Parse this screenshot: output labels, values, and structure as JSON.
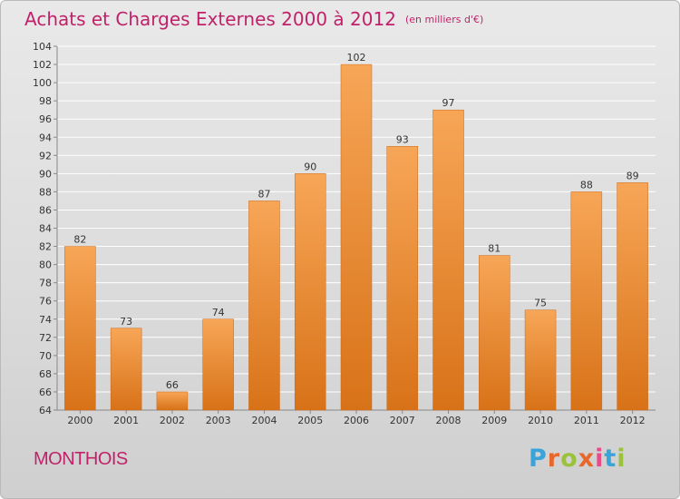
{
  "header": {
    "title": "Achats et Charges Externes 2000 à 2012",
    "subtitle": "(en milliers d'€)"
  },
  "footer": {
    "commune": "MONTHOIS",
    "brand": "Proxiti",
    "brand_colors": [
      "#3aa3d9",
      "#e8672a",
      "#9bc23c",
      "#e8672a",
      "#e84a8a",
      "#3aa3d9",
      "#9bc23c"
    ]
  },
  "colors": {
    "title": "#c0226a",
    "bar_top": "#f7a657",
    "bar_bottom": "#d87218",
    "grid": "#ffffff",
    "axis": "#888888"
  },
  "chart_data": {
    "type": "bar",
    "title": "Achats et Charges Externes 2000 à 2012",
    "subtitle": "(en milliers d'€)",
    "categories": [
      "2000",
      "2001",
      "2002",
      "2003",
      "2004",
      "2005",
      "2006",
      "2007",
      "2008",
      "2009",
      "2010",
      "2011",
      "2012"
    ],
    "values": [
      82,
      73,
      66,
      74,
      87,
      90,
      102,
      93,
      97,
      81,
      75,
      88,
      89
    ],
    "ylim": [
      64,
      104
    ],
    "yticks": [
      64,
      66,
      68,
      70,
      72,
      74,
      76,
      78,
      80,
      82,
      84,
      86,
      88,
      90,
      92,
      94,
      96,
      98,
      100,
      102,
      104
    ],
    "grid": true,
    "data_labels": true
  }
}
